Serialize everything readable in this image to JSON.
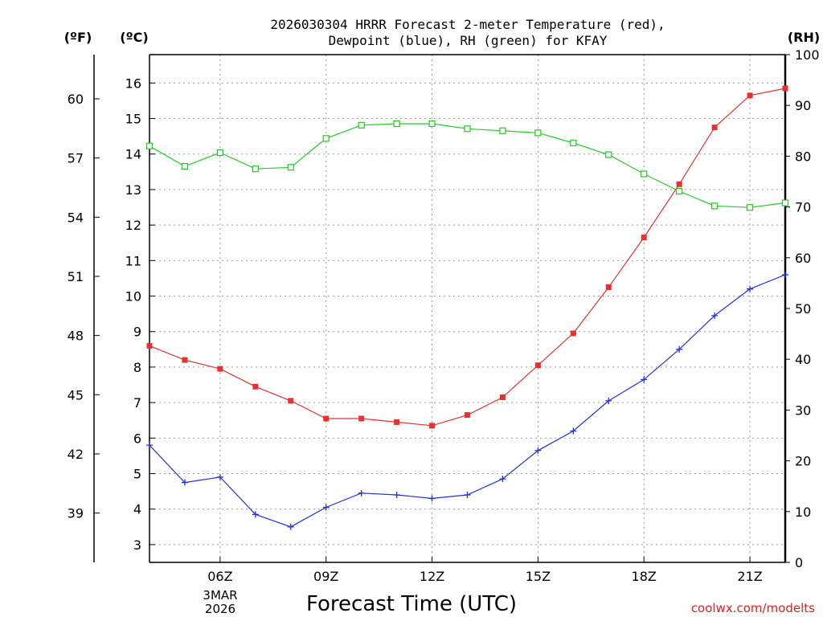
{
  "chart_data": {
    "type": "line",
    "title_line1": "2026030304 HRRR Forecast 2-meter Temperature (red),",
    "title_line2": "Dewpoint (blue), RH (green) for KFAY",
    "unit_f": "(ºF)",
    "unit_c": "(ºC)",
    "unit_rh": "(RH)",
    "xlabel": "Forecast Time (UTC)",
    "date_day": "3MAR",
    "date_year": "2026",
    "credit": "coolwx.com/modelts",
    "x_range": [
      4,
      22
    ],
    "x_ticks": [
      {
        "hour": 6,
        "label": "06Z"
      },
      {
        "hour": 9,
        "label": "09Z"
      },
      {
        "hour": 12,
        "label": "12Z"
      },
      {
        "hour": 15,
        "label": "15Z"
      },
      {
        "hour": 18,
        "label": "18Z"
      },
      {
        "hour": 21,
        "label": "21Z"
      }
    ],
    "c_range": [
      2.5,
      16.8
    ],
    "c_ticks": [
      3,
      4,
      5,
      6,
      7,
      8,
      9,
      10,
      11,
      12,
      13,
      14,
      15,
      16
    ],
    "f_ticks": [
      39,
      42,
      45,
      48,
      51,
      54,
      57,
      60
    ],
    "rh_range": [
      0,
      100
    ],
    "rh_ticks": [
      0,
      10,
      20,
      30,
      40,
      50,
      60,
      70,
      80,
      90,
      100
    ],
    "hours": [
      4,
      5,
      6,
      7,
      8,
      9,
      10,
      11,
      12,
      13,
      14,
      15,
      16,
      17,
      18,
      19,
      20,
      21,
      22
    ],
    "series": [
      {
        "name": "2-meter Temperature",
        "unit": "C",
        "color": "#e83030",
        "marker": "filled-square",
        "values": [
          8.6,
          8.2,
          7.95,
          7.45,
          7.05,
          6.55,
          6.55,
          6.45,
          6.35,
          6.65,
          7.15,
          8.05,
          8.95,
          10.25,
          11.65,
          13.15,
          14.75,
          15.65,
          15.85
        ]
      },
      {
        "name": "Dewpoint",
        "unit": "C",
        "color": "#2030e0",
        "marker": "plus",
        "values": [
          5.8,
          4.75,
          4.9,
          3.85,
          3.5,
          4.05,
          4.45,
          4.4,
          4.3,
          4.4,
          4.85,
          5.65,
          6.2,
          7.05,
          7.65,
          8.5,
          9.45,
          10.2,
          10.6
        ]
      },
      {
        "name": "RH",
        "unit": "%",
        "color": "#20cc20",
        "marker": "open-square",
        "values": [
          82,
          78,
          80.7,
          77.5,
          77.8,
          83.5,
          86.1,
          86.4,
          86.4,
          85.4,
          85.0,
          84.6,
          82.6,
          80.3,
          76.5,
          73.1,
          70.2,
          69.9,
          70.8
        ]
      }
    ]
  }
}
